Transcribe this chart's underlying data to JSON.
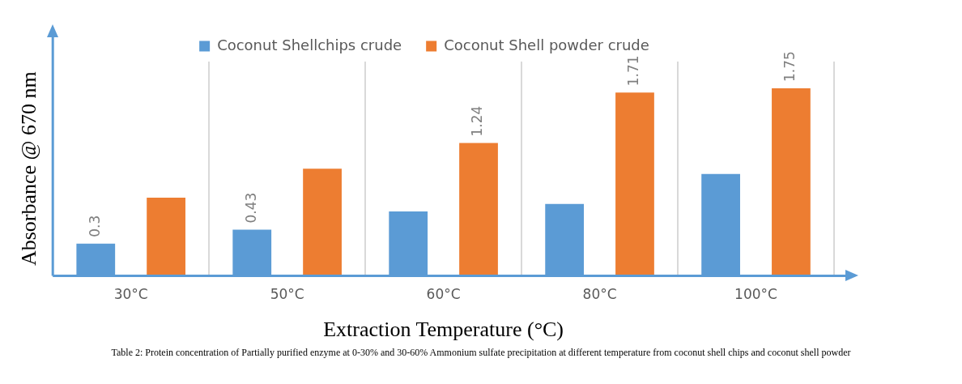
{
  "chart_data": {
    "type": "bar",
    "xlabel": "Extraction Temperature (°C)",
    "ylabel": "Absorbance @ 670 nm",
    "categories": [
      "30°C",
      "50°C",
      "60°C",
      "80°C",
      "100°C"
    ],
    "series": [
      {
        "name": "Coconut Shellchips crude",
        "color": "#5b9bd5",
        "values": [
          0.3,
          0.43,
          0.6,
          0.67,
          0.95
        ],
        "value_labels": [
          "0.3",
          "0.43",
          null,
          null,
          null
        ]
      },
      {
        "name": "Coconut Shell powder crude",
        "color": "#ed7d31",
        "values": [
          0.73,
          1.0,
          1.24,
          1.71,
          1.75
        ],
        "value_labels": [
          null,
          null,
          "1.24",
          "1.71",
          "1.75"
        ]
      }
    ],
    "legend": "top",
    "grid": "x",
    "annotations": [
      "Table 2: Protein concentration of Partially purified enzyme at 0-30% and 30-60% Ammonium sulfate precipitation at different temperature from coconut shell chips and coconut shell powder"
    ]
  }
}
